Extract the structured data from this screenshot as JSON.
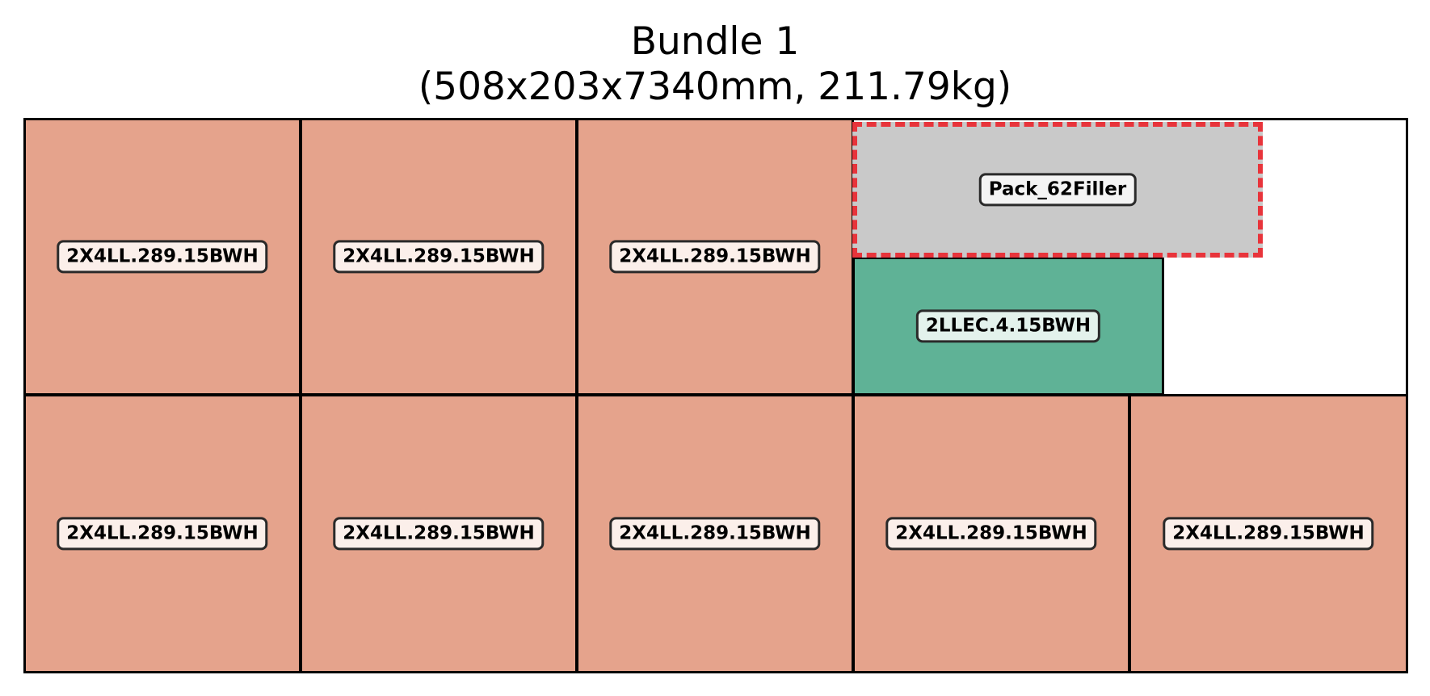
{
  "title": {
    "line1": "Bundle 1",
    "line2": "(508x203x7340mm, 211.79kg)"
  },
  "colors": {
    "lumber": "#e5a38c",
    "lumber_label_bg": "#fbefea",
    "ledger": "#5fb296",
    "ledger_label_bg": "#e3f2ec",
    "filler": "#c9c9c9",
    "filler_label_bg": "#f4f4f4",
    "filler_outline": "#e8343b",
    "edge": "#000000"
  },
  "pieces": [
    {
      "label": "2X4LL.289.15BWH",
      "type": "lumber"
    },
    {
      "label": "2X4LL.289.15BWH",
      "type": "lumber"
    },
    {
      "label": "2X4LL.289.15BWH",
      "type": "lumber"
    },
    {
      "label": "2LLEC.4.15BWH",
      "type": "ledger"
    },
    {
      "label": "Pack_62Filler",
      "type": "filler"
    },
    {
      "label": "2X4LL.289.15BWH",
      "type": "lumber"
    },
    {
      "label": "2X4LL.289.15BWH",
      "type": "lumber"
    },
    {
      "label": "2X4LL.289.15BWH",
      "type": "lumber"
    },
    {
      "label": "2X4LL.289.15BWH",
      "type": "lumber"
    },
    {
      "label": "2X4LL.289.15BWH",
      "type": "lumber"
    }
  ]
}
